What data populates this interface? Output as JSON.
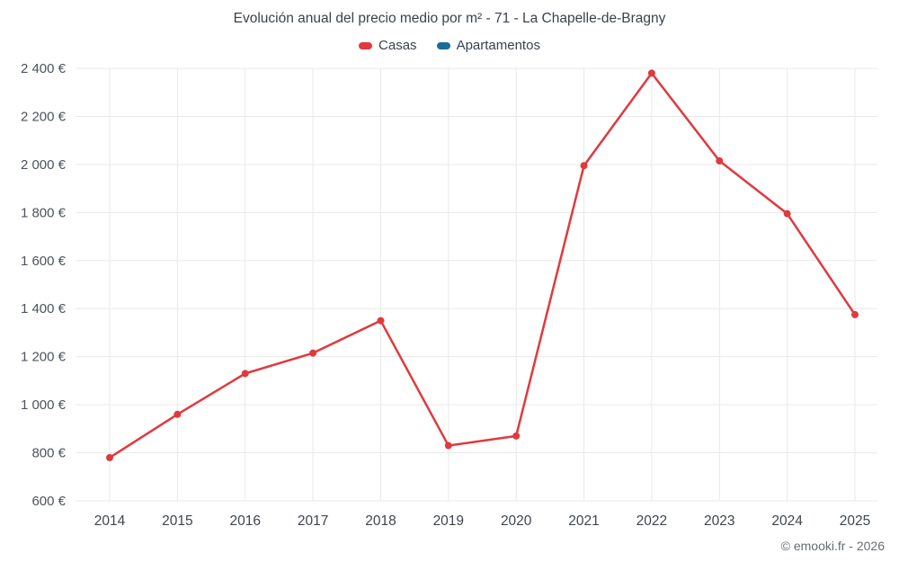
{
  "title": "Evolución anual del precio medio por m² - 71 - La Chapelle-de-Bragny",
  "footer": "© emooki.fr - 2026",
  "legend": [
    {
      "label": "Casas",
      "color": "#e0393e"
    },
    {
      "label": "Apartamentos",
      "color": "#1a6d9a"
    }
  ],
  "chart_data": {
    "type": "line",
    "title": "Evolución anual del precio medio por m² - 71 - La Chapelle-de-Bragny",
    "x": [
      2014,
      2015,
      2016,
      2017,
      2018,
      2019,
      2020,
      2021,
      2022,
      2023,
      2024,
      2025
    ],
    "series": [
      {
        "name": "Casas",
        "color": "#e0393e",
        "values": [
          780,
          960,
          1130,
          1215,
          1350,
          830,
          870,
          1995,
          2380,
          2015,
          1795,
          1375
        ]
      },
      {
        "name": "Apartamentos",
        "color": "#1a6d9a",
        "values": []
      }
    ],
    "ylim": [
      600,
      2400
    ],
    "ytick_step": 200,
    "ytick_format": "{value} €",
    "grid": true,
    "grid_color": "#e9e9e9",
    "legend_position": "top",
    "xlabel": "",
    "ylabel": ""
  }
}
